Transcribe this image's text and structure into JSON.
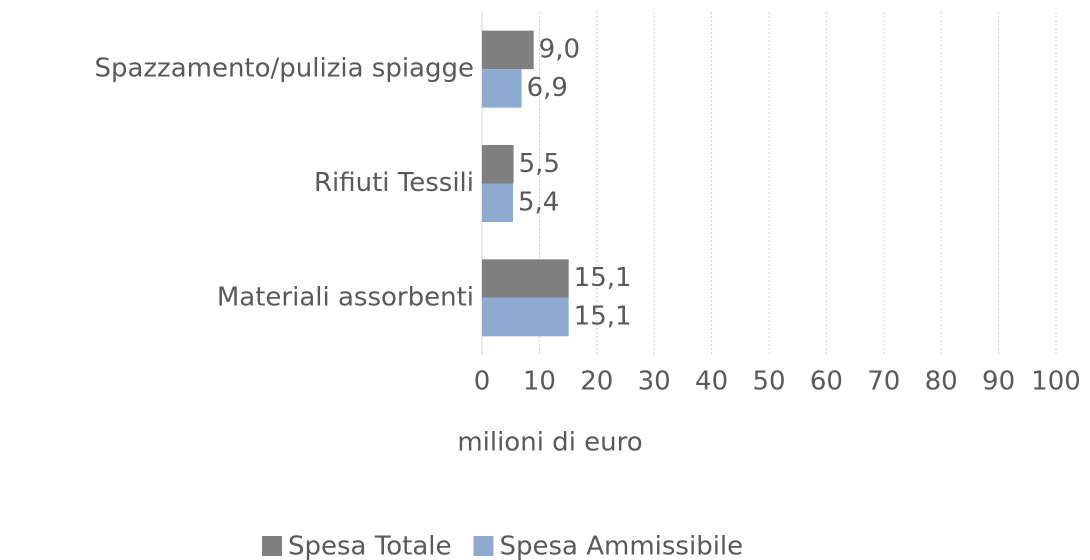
{
  "chart_data": {
    "type": "hbar",
    "categories": [
      "Spazzamento/pulizia spiagge",
      "Rifiuti Tessili",
      "Materiali assorbenti"
    ],
    "series": [
      {
        "name": "Spesa Totale",
        "color": "#7f7f7f",
        "values": [
          9.0,
          5.5,
          15.1
        ],
        "value_labels": [
          "9,0",
          "5,5",
          "15,1"
        ]
      },
      {
        "name": "Spesa Ammissibile",
        "color": "#8faad0",
        "values": [
          6.9,
          5.4,
          15.1
        ],
        "value_labels": [
          "6,9",
          "5,4",
          "15,1"
        ]
      }
    ],
    "xlabel": "milioni di euro",
    "xlim": [
      0,
      100
    ],
    "xticks": [
      0,
      10,
      20,
      30,
      40,
      50,
      60,
      70,
      80,
      90,
      100
    ],
    "grid": true,
    "legend": "bottom"
  }
}
